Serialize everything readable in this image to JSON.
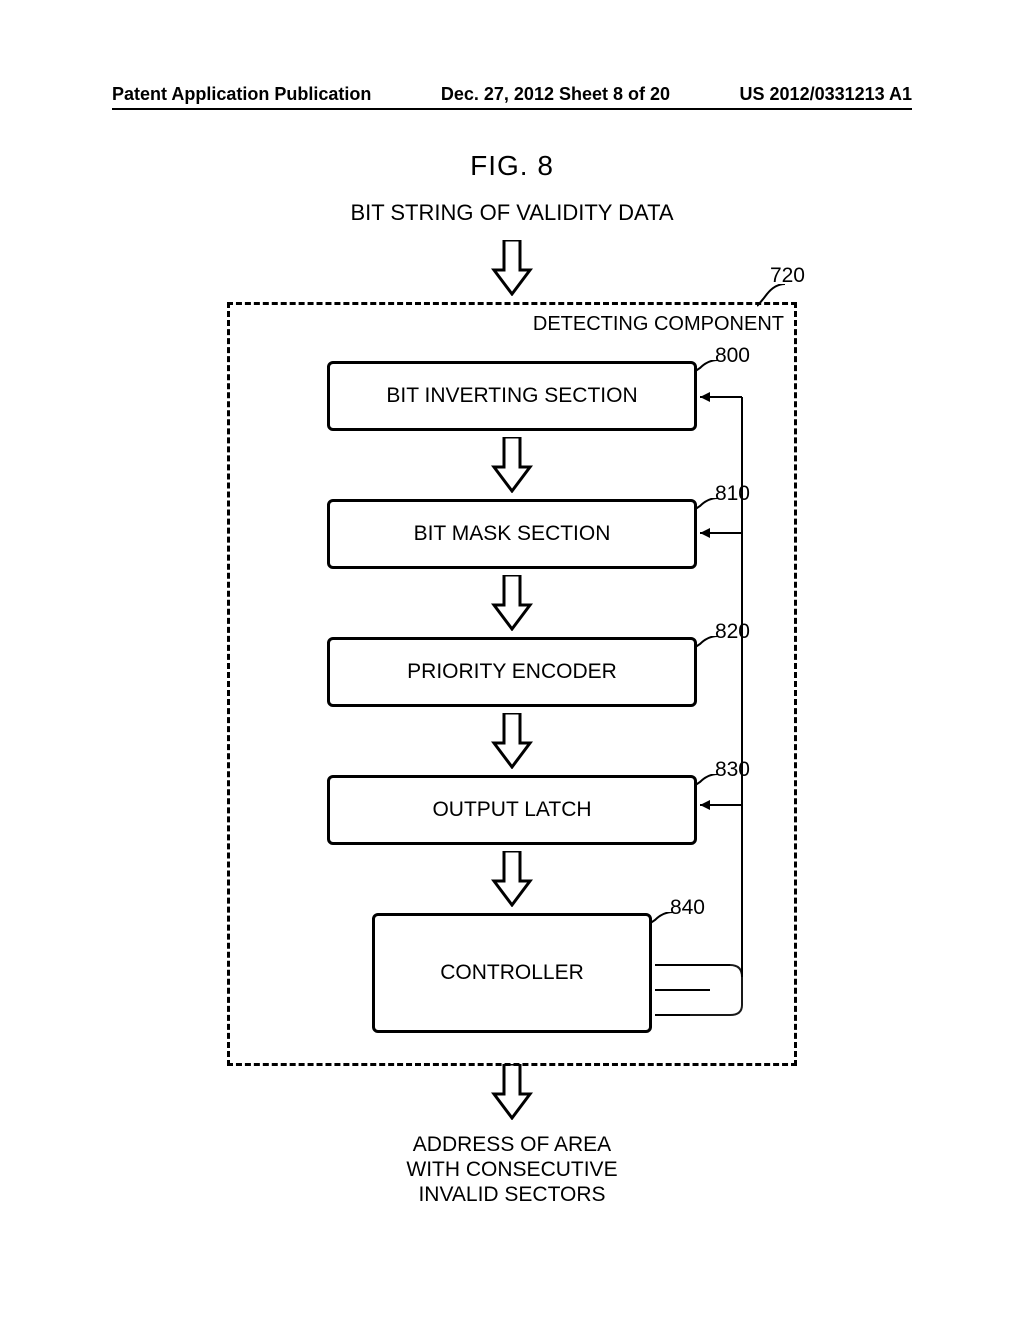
{
  "header": {
    "left": "Patent Application Publication",
    "center": "Dec. 27, 2012  Sheet 8 of 20",
    "right": "US 2012/0331213 A1"
  },
  "figure": {
    "title": "FIG. 8",
    "input_label": "BIT STRING OF VALIDITY DATA",
    "component_label": "DETECTING COMPONENT",
    "component_ref": "720",
    "blocks": {
      "b800": {
        "label": "BIT INVERTING SECTION",
        "ref": "800"
      },
      "b810": {
        "label": "BIT MASK SECTION",
        "ref": "810"
      },
      "b820": {
        "label": "PRIORITY ENCODER",
        "ref": "820"
      },
      "b830": {
        "label": "OUTPUT LATCH",
        "ref": "830"
      },
      "b840": {
        "label": "CONTROLLER",
        "ref": "840"
      }
    },
    "output_label": "ADDRESS OF AREA\nWITH CONSECUTIVE\nINVALID SECTORS"
  },
  "style": {
    "stroke": "#000000",
    "stroke_width": 3,
    "dash": "7,5",
    "font_size_title": 28,
    "font_size_label": 21,
    "bg": "#ffffff"
  }
}
